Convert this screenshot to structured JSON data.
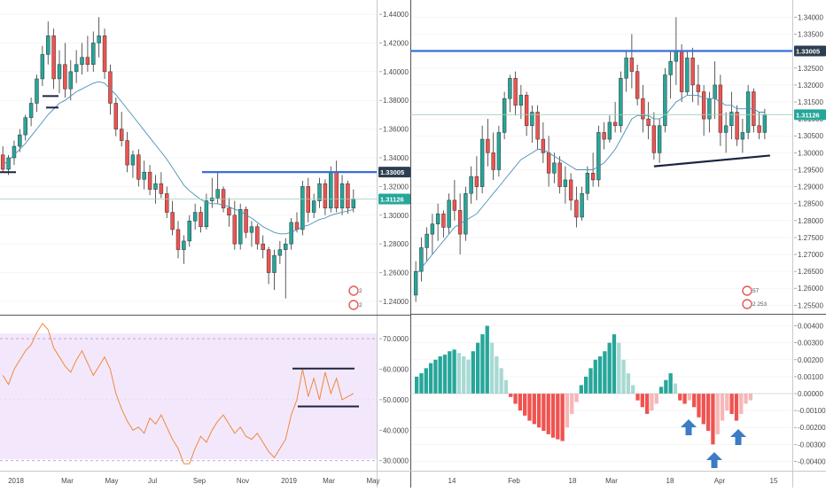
{
  "colors": {
    "up": "#26a69a",
    "down": "#ef5350",
    "up_light": "#a8d9d3",
    "down_light": "#f7b7b7",
    "ma": "#4a90b8",
    "rsi": "#f0883e",
    "rsi_bg": "#f3e8fb",
    "resistance": "#3a6fd8",
    "support": "#1c2440",
    "hline": "#9ad2b0",
    "arrow": "#3b7cc4",
    "badge": "#2c3e50",
    "badge_green": "#26a69a",
    "icon": "#e05a5a"
  },
  "chart_data": [
    {
      "type": "candlestick",
      "panel": "weekly-price",
      "y_ticks": [
        "1.44000",
        "1.42000",
        "1.40000",
        "1.38000",
        "1.36000",
        "1.34000",
        "1.32000",
        "1.30000",
        "1.28000",
        "1.26000",
        "1.24000"
      ],
      "ylim": [
        1.235,
        1.445
      ],
      "price_labels": [
        "1.33005",
        "1.31126"
      ],
      "resistance": 1.33005,
      "current": 1.31126,
      "ohlc": [
        [
          1.342,
          1.348,
          1.33,
          1.332
        ],
        [
          1.332,
          1.342,
          1.328,
          1.34
        ],
        [
          1.34,
          1.352,
          1.335,
          1.348
        ],
        [
          1.348,
          1.36,
          1.344,
          1.356
        ],
        [
          1.356,
          1.37,
          1.352,
          1.368
        ],
        [
          1.368,
          1.382,
          1.362,
          1.378
        ],
        [
          1.378,
          1.398,
          1.372,
          1.395
        ],
        [
          1.395,
          1.418,
          1.39,
          1.412
        ],
        [
          1.412,
          1.435,
          1.405,
          1.425
        ],
        [
          1.425,
          1.43,
          1.388,
          1.395
        ],
        [
          1.395,
          1.415,
          1.385,
          1.405
        ],
        [
          1.405,
          1.42,
          1.382,
          1.388
        ],
        [
          1.388,
          1.408,
          1.38,
          1.4
        ],
        [
          1.4,
          1.415,
          1.392,
          1.405
        ],
        [
          1.405,
          1.42,
          1.398,
          1.41
        ],
        [
          1.41,
          1.425,
          1.4,
          1.405
        ],
        [
          1.405,
          1.428,
          1.4,
          1.42
        ],
        [
          1.42,
          1.438,
          1.41,
          1.425
        ],
        [
          1.425,
          1.43,
          1.395,
          1.4
        ],
        [
          1.4,
          1.405,
          1.37,
          1.378
        ],
        [
          1.378,
          1.382,
          1.355,
          1.36
        ],
        [
          1.36,
          1.372,
          1.348,
          1.352
        ],
        [
          1.352,
          1.358,
          1.33,
          1.335
        ],
        [
          1.335,
          1.345,
          1.326,
          1.342
        ],
        [
          1.342,
          1.346,
          1.32,
          1.325
        ],
        [
          1.325,
          1.338,
          1.318,
          1.33
        ],
        [
          1.33,
          1.335,
          1.314,
          1.318
        ],
        [
          1.318,
          1.328,
          1.308,
          1.322
        ],
        [
          1.322,
          1.33,
          1.312,
          1.315
        ],
        [
          1.315,
          1.32,
          1.298,
          1.302
        ],
        [
          1.302,
          1.31,
          1.286,
          1.29
        ],
        [
          1.29,
          1.296,
          1.27,
          1.276
        ],
        [
          1.276,
          1.286,
          1.266,
          1.282
        ],
        [
          1.282,
          1.3,
          1.278,
          1.296
        ],
        [
          1.296,
          1.308,
          1.29,
          1.302
        ],
        [
          1.302,
          1.306,
          1.288,
          1.292
        ],
        [
          1.292,
          1.315,
          1.29,
          1.31
        ],
        [
          1.31,
          1.326,
          1.305,
          1.312
        ],
        [
          1.312,
          1.33,
          1.308,
          1.318
        ],
        [
          1.318,
          1.32,
          1.302,
          1.305
        ],
        [
          1.305,
          1.312,
          1.292,
          1.3
        ],
        [
          1.3,
          1.31,
          1.276,
          1.28
        ],
        [
          1.28,
          1.308,
          1.276,
          1.304
        ],
        [
          1.304,
          1.306,
          1.284,
          1.288
        ],
        [
          1.288,
          1.296,
          1.278,
          1.292
        ],
        [
          1.292,
          1.294,
          1.276,
          1.28
        ],
        [
          1.28,
          1.286,
          1.27,
          1.276
        ],
        [
          1.276,
          1.278,
          1.252,
          1.26
        ],
        [
          1.26,
          1.276,
          1.248,
          1.272
        ],
        [
          1.272,
          1.282,
          1.266,
          1.276
        ],
        [
          1.276,
          1.284,
          1.242,
          1.28
        ],
        [
          1.28,
          1.298,
          1.276,
          1.295
        ],
        [
          1.295,
          1.302,
          1.288,
          1.29
        ],
        [
          1.29,
          1.324,
          1.286,
          1.32
        ],
        [
          1.32,
          1.326,
          1.295,
          1.302
        ],
        [
          1.302,
          1.315,
          1.298,
          1.31
        ],
        [
          1.31,
          1.326,
          1.305,
          1.322
        ],
        [
          1.322,
          1.325,
          1.3,
          1.305
        ],
        [
          1.305,
          1.334,
          1.302,
          1.33
        ],
        [
          1.33,
          1.338,
          1.302,
          1.305
        ],
        [
          1.305,
          1.328,
          1.3,
          1.322
        ],
        [
          1.322,
          1.324,
          1.301,
          1.305
        ],
        [
          1.305,
          1.318,
          1.302,
          1.3113
        ]
      ],
      "ma": [
        1.335,
        1.338,
        1.342,
        1.346,
        1.35,
        1.355,
        1.36,
        1.365,
        1.37,
        1.374,
        1.378,
        1.38,
        1.383,
        1.386,
        1.388,
        1.39,
        1.392,
        1.393,
        1.392,
        1.388,
        1.384,
        1.379,
        1.374,
        1.369,
        1.364,
        1.359,
        1.354,
        1.349,
        1.344,
        1.339,
        1.333,
        1.327,
        1.321,
        1.317,
        1.314,
        1.311,
        1.309,
        1.308,
        1.308,
        1.307,
        1.306,
        1.304,
        1.303,
        1.3,
        1.298,
        1.295,
        1.292,
        1.29,
        1.288,
        1.287,
        1.287,
        1.288,
        1.29,
        1.292,
        1.293,
        1.295,
        1.297,
        1.298,
        1.3,
        1.301,
        1.302,
        1.303,
        1.304
      ]
    },
    {
      "type": "line",
      "panel": "weekly-rsi",
      "y_ticks": [
        "70.0000",
        "60.0000",
        "50.0000",
        "40.0000",
        "30.0000"
      ],
      "ylim": [
        27,
        77
      ],
      "bands": [
        70,
        30
      ],
      "values": [
        58,
        55,
        60,
        63,
        66,
        68,
        72,
        75,
        73,
        67,
        64,
        61,
        59,
        63,
        66,
        62,
        58,
        61,
        64,
        60,
        52,
        47,
        43,
        40,
        41,
        39,
        44,
        42,
        45,
        41,
        37,
        34,
        29,
        29,
        34,
        38,
        36,
        40,
        43,
        45,
        42,
        39,
        41,
        38,
        37,
        39,
        36,
        33,
        31,
        34,
        37,
        45,
        50,
        60,
        51,
        57,
        50,
        59,
        52,
        57,
        50,
        51,
        52
      ],
      "channel_top": 60.2,
      "channel_bottom": 47.8
    },
    {
      "type": "candlestick",
      "panel": "daily-price",
      "y_ticks": [
        "1.34000",
        "1.33500",
        "1.33000",
        "1.32500",
        "1.32000",
        "1.31500",
        "1.31000",
        "1.30500",
        "1.30000",
        "1.29500",
        "1.29000",
        "1.28500",
        "1.28000",
        "1.27500",
        "1.27000",
        "1.26500",
        "1.26000",
        "1.25500"
      ],
      "ylim": [
        1.253,
        1.343
      ],
      "price_labels": [
        "1.33005",
        "1.31126"
      ],
      "resistance": 1.33005,
      "current": 1.31126,
      "ohlc": [
        [
          1.258,
          1.268,
          1.256,
          1.265
        ],
        [
          1.265,
          1.275,
          1.262,
          1.272
        ],
        [
          1.272,
          1.278,
          1.268,
          1.276
        ],
        [
          1.276,
          1.282,
          1.27,
          1.279
        ],
        [
          1.279,
          1.285,
          1.274,
          1.282
        ],
        [
          1.282,
          1.283,
          1.275,
          1.278
        ],
        [
          1.278,
          1.288,
          1.276,
          1.286
        ],
        [
          1.286,
          1.292,
          1.28,
          1.283
        ],
        [
          1.283,
          1.288,
          1.27,
          1.276
        ],
        [
          1.276,
          1.29,
          1.274,
          1.288
        ],
        [
          1.288,
          1.296,
          1.285,
          1.293
        ],
        [
          1.293,
          1.299,
          1.286,
          1.29
        ],
        [
          1.29,
          1.308,
          1.288,
          1.304
        ],
        [
          1.304,
          1.31,
          1.296,
          1.3
        ],
        [
          1.3,
          1.306,
          1.292,
          1.295
        ],
        [
          1.295,
          1.308,
          1.293,
          1.306
        ],
        [
          1.306,
          1.318,
          1.304,
          1.316
        ],
        [
          1.316,
          1.323,
          1.312,
          1.322
        ],
        [
          1.322,
          1.324,
          1.311,
          1.314
        ],
        [
          1.314,
          1.32,
          1.31,
          1.317
        ],
        [
          1.317,
          1.318,
          1.305,
          1.308
        ],
        [
          1.308,
          1.314,
          1.303,
          1.312
        ],
        [
          1.312,
          1.314,
          1.301,
          1.304
        ],
        [
          1.304,
          1.309,
          1.297,
          1.3
        ],
        [
          1.3,
          1.305,
          1.29,
          1.294
        ],
        [
          1.294,
          1.3,
          1.291,
          1.297
        ],
        [
          1.297,
          1.299,
          1.288,
          1.29
        ],
        [
          1.29,
          1.296,
          1.285,
          1.292
        ],
        [
          1.292,
          1.294,
          1.283,
          1.286
        ],
        [
          1.286,
          1.29,
          1.278,
          1.281
        ],
        [
          1.281,
          1.29,
          1.28,
          1.288
        ],
        [
          1.288,
          1.296,
          1.286,
          1.294
        ],
        [
          1.294,
          1.3,
          1.29,
          1.292
        ],
        [
          1.292,
          1.308,
          1.29,
          1.306
        ],
        [
          1.306,
          1.309,
          1.301,
          1.304
        ],
        [
          1.304,
          1.311,
          1.303,
          1.309
        ],
        [
          1.309,
          1.315,
          1.306,
          1.308
        ],
        [
          1.308,
          1.324,
          1.306,
          1.322
        ],
        [
          1.322,
          1.33,
          1.318,
          1.328
        ],
        [
          1.328,
          1.335,
          1.319,
          1.324
        ],
        [
          1.324,
          1.326,
          1.314,
          1.316
        ],
        [
          1.316,
          1.32,
          1.306,
          1.31
        ],
        [
          1.31,
          1.315,
          1.304,
          1.308
        ],
        [
          1.308,
          1.312,
          1.298,
          1.3
        ],
        [
          1.3,
          1.31,
          1.297,
          1.308
        ],
        [
          1.308,
          1.325,
          1.306,
          1.323
        ],
        [
          1.323,
          1.33,
          1.316,
          1.327
        ],
        [
          1.327,
          1.34,
          1.32,
          1.33
        ],
        [
          1.33,
          1.332,
          1.315,
          1.318
        ],
        [
          1.318,
          1.33,
          1.317,
          1.328
        ],
        [
          1.328,
          1.331,
          1.315,
          1.32
        ],
        [
          1.32,
          1.326,
          1.314,
          1.318
        ],
        [
          1.318,
          1.32,
          1.305,
          1.31
        ],
        [
          1.31,
          1.318,
          1.306,
          1.316
        ],
        [
          1.316,
          1.327,
          1.31,
          1.32
        ],
        [
          1.32,
          1.323,
          1.302,
          1.306
        ],
        [
          1.306,
          1.312,
          1.3,
          1.308
        ],
        [
          1.308,
          1.318,
          1.304,
          1.312
        ],
        [
          1.312,
          1.314,
          1.302,
          1.304
        ],
        [
          1.304,
          1.31,
          1.3,
          1.306
        ],
        [
          1.306,
          1.32,
          1.304,
          1.318
        ],
        [
          1.318,
          1.319,
          1.306,
          1.308
        ],
        [
          1.308,
          1.312,
          1.304,
          1.306
        ],
        [
          1.306,
          1.313,
          1.304,
          1.3113
        ]
      ],
      "ma": [
        1.264,
        1.266,
        1.268,
        1.27,
        1.272,
        1.274,
        1.276,
        1.278,
        1.279,
        1.28,
        1.281,
        1.282,
        1.284,
        1.286,
        1.288,
        1.29,
        1.292,
        1.294,
        1.296,
        1.298,
        1.299,
        1.3,
        1.301,
        1.301,
        1.3,
        1.299,
        1.298,
        1.297,
        1.296,
        1.295,
        1.295,
        1.295,
        1.295,
        1.296,
        1.297,
        1.299,
        1.301,
        1.304,
        1.307,
        1.31,
        1.311,
        1.311,
        1.311,
        1.31,
        1.31,
        1.311,
        1.313,
        1.315,
        1.316,
        1.317,
        1.317,
        1.317,
        1.316,
        1.316,
        1.316,
        1.315,
        1.314,
        1.314,
        1.313,
        1.313,
        1.313,
        1.313,
        1.312,
        1.312
      ],
      "support_line": [
        [
          43,
          1.296
        ],
        [
          63,
          1.2992
        ]
      ]
    },
    {
      "type": "histogram",
      "panel": "daily-histogram",
      "y_ticks": [
        "0.00400",
        "0.00300",
        "0.00200",
        "0.00100",
        "0.00000",
        "-0.00100",
        "-0.00200",
        "-0.00300",
        "-0.00400"
      ],
      "ylim": [
        -0.0045,
        0.0045
      ],
      "values": [
        0.001,
        0.0012,
        0.0015,
        0.0018,
        0.002,
        0.0022,
        0.0023,
        0.0025,
        0.0026,
        0.0024,
        0.0022,
        0.002,
        0.0025,
        0.003,
        0.0035,
        0.004,
        0.003,
        0.0022,
        0.0015,
        0.0008,
        -0.0002,
        -0.0006,
        -0.001,
        -0.0013,
        -0.0016,
        -0.0018,
        -0.002,
        -0.0022,
        -0.0024,
        -0.0026,
        -0.0027,
        -0.0028,
        -0.002,
        -0.0012,
        -0.0005,
        0.0005,
        0.001,
        0.0015,
        0.002,
        0.0022,
        0.0025,
        0.003,
        0.0035,
        0.003,
        0.002,
        0.0012,
        0.0005,
        -0.0004,
        -0.0008,
        -0.0012,
        -0.001,
        -0.0006,
        0.0004,
        0.0008,
        0.0012,
        0.0006,
        -0.0004,
        -0.0006,
        -0.0004,
        -0.0008,
        -0.0014,
        -0.0018,
        -0.0022,
        -0.003,
        -0.0024,
        -0.0016,
        -0.001,
        -0.0012,
        -0.0016,
        -0.0012,
        -0.0006,
        -0.0004
      ]
    }
  ],
  "weekly_x_labels": [
    "2018",
    "Mar",
    "May",
    "Jul",
    "Sep",
    "Nov",
    "2019",
    "Mar",
    "May"
  ],
  "daily_x_labels": [
    "14",
    "Feb",
    "18",
    "Mar",
    "18",
    "Apr",
    "15"
  ],
  "badges": {
    "left_top": "2",
    "left_bottom": "2",
    "right_top": "57",
    "right_bottom": "2 253"
  }
}
